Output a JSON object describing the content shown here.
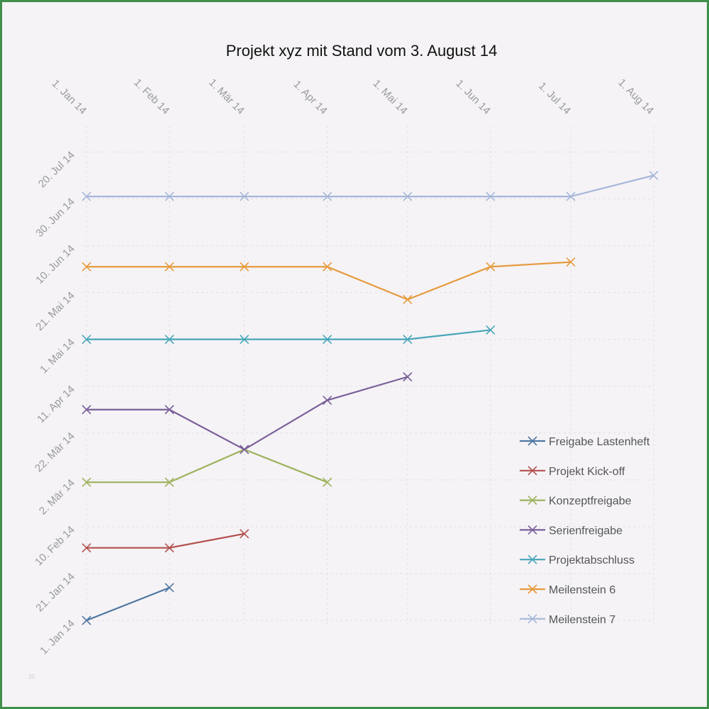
{
  "chart_data": {
    "type": "line",
    "title": "Projekt xyz mit Stand vom 3. August 14",
    "xlabel": "",
    "ylabel": "",
    "x_axis_position": "top",
    "x_ticks": [
      "1. Jan 14",
      "1. Feb 14",
      "1. Mär 14",
      "1. Apr 14",
      "1. Mai 14",
      "1. Jun 14",
      "1. Jul 14",
      "1. Aug 14"
    ],
    "x_tick_dates": [
      "2014-01-01",
      "2014-02-01",
      "2014-03-01",
      "2014-04-01",
      "2014-05-01",
      "2014-06-01",
      "2014-07-01",
      "2014-08-01"
    ],
    "y_ticks": [
      "1. Jan 14",
      "21. Jan 14",
      "10. Feb 14",
      "2. Mär 14",
      "22. Mär 14",
      "11. Apr 14",
      "1. Mai 14",
      "21. Mai 14",
      "10. Jun 14",
      "30. Jun 14",
      "20. Jul 14"
    ],
    "y_tick_dates": [
      "2014-01-01",
      "2014-01-21",
      "2014-02-10",
      "2014-03-02",
      "2014-03-22",
      "2014-04-11",
      "2014-05-01",
      "2014-05-21",
      "2014-06-10",
      "2014-06-30",
      "2014-07-20"
    ],
    "xlim": [
      "2014-01-01",
      "2014-08-01"
    ],
    "ylim": [
      "2013-12-29",
      "2014-07-31"
    ],
    "grid": true,
    "legend_position": "bottom-right",
    "series": [
      {
        "name": "Freigabe Lastenheft",
        "color": "#4f77a3",
        "points": [
          {
            "x": "2014-01-01",
            "y": "2014-01-01"
          },
          {
            "x": "2014-02-01",
            "y": "2014-01-15"
          }
        ]
      },
      {
        "name": "Projekt Kick-off",
        "color": "#b34f4c",
        "points": [
          {
            "x": "2014-01-01",
            "y": "2014-02-01"
          },
          {
            "x": "2014-02-01",
            "y": "2014-02-01"
          },
          {
            "x": "2014-03-01",
            "y": "2014-02-07"
          }
        ]
      },
      {
        "name": "Konzeptfreigabe",
        "color": "#9cb25b",
        "points": [
          {
            "x": "2014-01-01",
            "y": "2014-03-01"
          },
          {
            "x": "2014-02-01",
            "y": "2014-03-01"
          },
          {
            "x": "2014-03-01",
            "y": "2014-03-15"
          },
          {
            "x": "2014-04-01",
            "y": "2014-03-01"
          }
        ]
      },
      {
        "name": "Serienfreigabe",
        "color": "#7a5f99",
        "points": [
          {
            "x": "2014-01-01",
            "y": "2014-04-01"
          },
          {
            "x": "2014-02-01",
            "y": "2014-04-01"
          },
          {
            "x": "2014-03-01",
            "y": "2014-03-15"
          },
          {
            "x": "2014-04-01",
            "y": "2014-04-05"
          },
          {
            "x": "2014-05-01",
            "y": "2014-04-15"
          }
        ]
      },
      {
        "name": "Projektabschluss",
        "color": "#47a6b8",
        "points": [
          {
            "x": "2014-01-01",
            "y": "2014-05-01"
          },
          {
            "x": "2014-02-01",
            "y": "2014-05-01"
          },
          {
            "x": "2014-03-01",
            "y": "2014-05-01"
          },
          {
            "x": "2014-04-01",
            "y": "2014-05-01"
          },
          {
            "x": "2014-05-01",
            "y": "2014-05-01"
          },
          {
            "x": "2014-06-01",
            "y": "2014-05-05"
          }
        ]
      },
      {
        "name": "Meilenstein 6",
        "color": "#e69a3e",
        "points": [
          {
            "x": "2014-01-01",
            "y": "2014-06-01"
          },
          {
            "x": "2014-02-01",
            "y": "2014-06-01"
          },
          {
            "x": "2014-03-01",
            "y": "2014-06-01"
          },
          {
            "x": "2014-04-01",
            "y": "2014-06-01"
          },
          {
            "x": "2014-05-01",
            "y": "2014-05-18"
          },
          {
            "x": "2014-06-01",
            "y": "2014-06-01"
          },
          {
            "x": "2014-07-01",
            "y": "2014-06-03"
          }
        ]
      },
      {
        "name": "Meilenstein 7",
        "color": "#a6b7d9",
        "points": [
          {
            "x": "2014-01-01",
            "y": "2014-07-01"
          },
          {
            "x": "2014-02-01",
            "y": "2014-07-01"
          },
          {
            "x": "2014-03-01",
            "y": "2014-07-01"
          },
          {
            "x": "2014-04-01",
            "y": "2014-07-01"
          },
          {
            "x": "2014-05-01",
            "y": "2014-07-01"
          },
          {
            "x": "2014-06-01",
            "y": "2014-07-01"
          },
          {
            "x": "2014-07-01",
            "y": "2014-07-01"
          },
          {
            "x": "2014-08-01",
            "y": "2014-07-10"
          }
        ]
      }
    ]
  },
  "footer_note": "20"
}
